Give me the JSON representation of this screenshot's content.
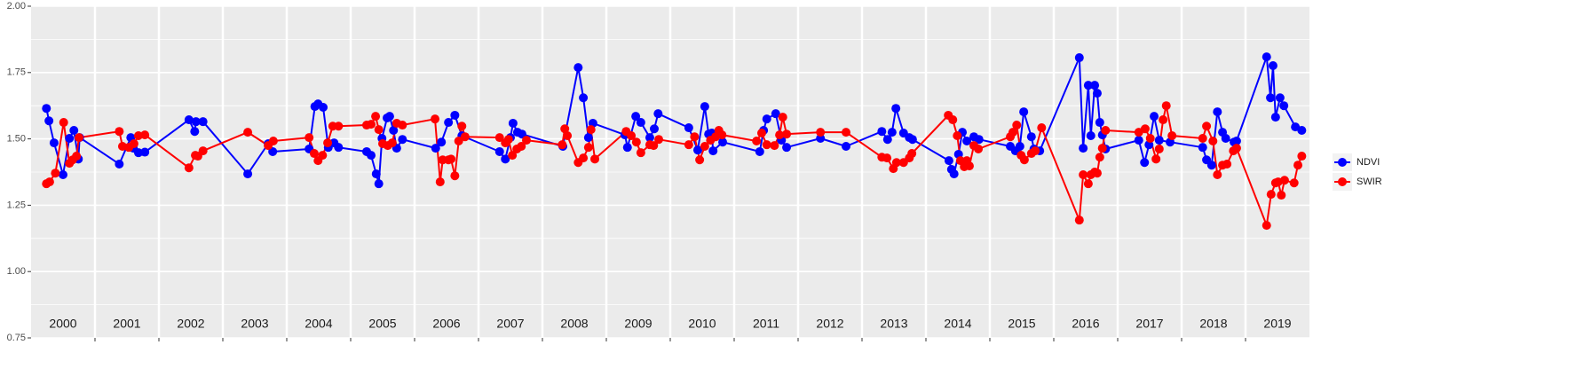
{
  "chart_data": {
    "type": "line",
    "xlim": [
      2000,
      2020
    ],
    "xticks": [
      2000,
      2001,
      2002,
      2003,
      2004,
      2005,
      2006,
      2007,
      2008,
      2009,
      2010,
      2011,
      2012,
      2013,
      2014,
      2015,
      2016,
      2017,
      2018,
      2019
    ],
    "ylim": [
      0.75,
      2.0
    ],
    "yticks": [
      {
        "value": 0.75,
        "label": "0.75"
      },
      {
        "value": 1.0,
        "label": "1.00"
      },
      {
        "value": 1.25,
        "label": "1.25"
      },
      {
        "value": 1.5,
        "label": "1.50"
      },
      {
        "value": 1.75,
        "label": "1.75"
      },
      {
        "value": 2.0,
        "label": "2.00"
      }
    ],
    "grid": true,
    "legend": "right",
    "series": [
      {
        "name": "NDVI",
        "color": "#0000ff",
        "x": [
          2000.24,
          2000.28,
          2000.36,
          2000.5,
          2000.6,
          2000.67,
          2000.74,
          2000.76,
          2001.38,
          2001.56,
          2001.6,
          2001.68,
          2001.78,
          2002.47,
          2002.56,
          2002.58,
          2002.69,
          2003.39,
          2003.71,
          2003.78,
          2004.35,
          2004.44,
          2004.49,
          2004.57,
          2004.65,
          2004.74,
          2004.81,
          2005.25,
          2005.32,
          2005.4,
          2005.44,
          2005.49,
          2005.57,
          2005.61,
          2005.67,
          2005.72,
          2005.81,
          2006.33,
          2006.42,
          2006.53,
          2006.63,
          2006.74,
          2007.33,
          2007.42,
          2007.5,
          2007.54,
          2007.61,
          2007.68,
          2008.32,
          2008.56,
          2008.64,
          2008.72,
          2008.79,
          2009.29,
          2009.33,
          2009.46,
          2009.54,
          2009.68,
          2009.75,
          2009.81,
          2010.29,
          2010.43,
          2010.54,
          2010.6,
          2010.65,
          2010.67,
          2010.82,
          2011.4,
          2011.46,
          2011.51,
          2011.65,
          2011.74,
          2011.82,
          2012.35,
          2012.75,
          2013.31,
          2013.4,
          2013.47,
          2013.53,
          2013.65,
          2013.74,
          2013.79,
          2014.36,
          2014.4,
          2014.44,
          2014.51,
          2014.57,
          2014.64,
          2014.75,
          2014.83,
          2015.32,
          2015.4,
          2015.47,
          2015.53,
          2015.65,
          2015.69,
          2015.78,
          2016.4,
          2016.46,
          2016.54,
          2016.58,
          2016.64,
          2016.68,
          2016.72,
          2016.76,
          2016.81,
          2017.33,
          2017.42,
          2017.49,
          2017.57,
          2017.65,
          2017.82,
          2018.33,
          2018.39,
          2018.47,
          2018.56,
          2018.64,
          2018.69,
          2018.82,
          2018.86,
          2019.33,
          2019.39,
          2019.43,
          2019.47,
          2019.54,
          2019.6,
          2019.78,
          2019.88
        ],
        "values": [
          1.615,
          1.568,
          1.485,
          1.365,
          1.502,
          1.532,
          1.424,
          1.505,
          1.405,
          1.505,
          1.465,
          1.448,
          1.45,
          1.572,
          1.528,
          1.565,
          1.565,
          1.368,
          1.482,
          1.452,
          1.462,
          1.622,
          1.632,
          1.619,
          1.468,
          1.485,
          1.468,
          1.452,
          1.438,
          1.368,
          1.331,
          1.502,
          1.579,
          1.585,
          1.532,
          1.465,
          1.498,
          1.465,
          1.488,
          1.562,
          1.589,
          1.512,
          1.452,
          1.424,
          1.505,
          1.559,
          1.525,
          1.518,
          1.472,
          1.769,
          1.655,
          1.505,
          1.559,
          1.515,
          1.468,
          1.585,
          1.562,
          1.505,
          1.538,
          1.595,
          1.542,
          1.458,
          1.622,
          1.518,
          1.522,
          1.455,
          1.488,
          1.452,
          1.532,
          1.575,
          1.595,
          1.495,
          1.468,
          1.502,
          1.472,
          1.528,
          1.498,
          1.525,
          1.615,
          1.522,
          1.505,
          1.498,
          1.418,
          1.385,
          1.368,
          1.442,
          1.525,
          1.492,
          1.508,
          1.498,
          1.472,
          1.455,
          1.472,
          1.602,
          1.508,
          1.462,
          1.455,
          1.806,
          1.465,
          1.702,
          1.512,
          1.702,
          1.672,
          1.562,
          1.515,
          1.462,
          1.495,
          1.411,
          1.478,
          1.585,
          1.495,
          1.488,
          1.468,
          1.421,
          1.401,
          1.602,
          1.525,
          1.502,
          1.488,
          1.492,
          1.809,
          1.655,
          1.776,
          1.582,
          1.655,
          1.625,
          1.545,
          1.532
        ]
      },
      {
        "name": "SWIR",
        "color": "#ff0000",
        "x": [
          2000.24,
          2000.29,
          2000.38,
          2000.51,
          2000.6,
          2000.65,
          2000.71,
          2000.75,
          2001.38,
          2001.43,
          2001.53,
          2001.61,
          2001.68,
          2001.78,
          2002.47,
          2002.57,
          2002.61,
          2002.69,
          2003.39,
          2003.71,
          2003.79,
          2004.35,
          2004.43,
          2004.49,
          2004.56,
          2004.64,
          2004.72,
          2004.81,
          2005.25,
          2005.32,
          2005.39,
          2005.44,
          2005.5,
          2005.58,
          2005.65,
          2005.72,
          2005.81,
          2006.32,
          2006.4,
          2006.44,
          2006.53,
          2006.57,
          2006.63,
          2006.69,
          2006.74,
          2006.79,
          2007.33,
          2007.42,
          2007.47,
          2007.53,
          2007.6,
          2007.67,
          2007.75,
          2008.31,
          2008.35,
          2008.39,
          2008.56,
          2008.64,
          2008.72,
          2008.76,
          2008.82,
          2009.31,
          2009.39,
          2009.47,
          2009.54,
          2009.68,
          2009.74,
          2009.82,
          2010.29,
          2010.38,
          2010.46,
          2010.54,
          2010.63,
          2010.71,
          2010.76,
          2010.81,
          2011.35,
          2011.43,
          2011.51,
          2011.63,
          2011.71,
          2011.76,
          2011.82,
          2012.35,
          2012.75,
          2013.31,
          2013.39,
          2013.49,
          2013.54,
          2013.65,
          2013.74,
          2013.78,
          2014.35,
          2014.42,
          2014.49,
          2014.54,
          2014.6,
          2014.64,
          2014.68,
          2014.75,
          2014.82,
          2015.32,
          2015.36,
          2015.42,
          2015.49,
          2015.54,
          2015.65,
          2015.71,
          2015.81,
          2016.4,
          2016.46,
          2016.54,
          2016.58,
          2016.64,
          2016.68,
          2016.72,
          2016.76,
          2016.81,
          2017.33,
          2017.43,
          2017.51,
          2017.6,
          2017.65,
          2017.71,
          2017.76,
          2017.85,
          2018.33,
          2018.39,
          2018.49,
          2018.56,
          2018.64,
          2018.71,
          2018.81,
          2018.86,
          2019.33,
          2019.4,
          2019.47,
          2019.51,
          2019.56,
          2019.61,
          2019.76,
          2019.82,
          2019.88
        ],
        "values": [
          1.331,
          1.338,
          1.371,
          1.562,
          1.408,
          1.421,
          1.435,
          1.505,
          1.528,
          1.472,
          1.468,
          1.482,
          1.512,
          1.515,
          1.391,
          1.438,
          1.435,
          1.455,
          1.525,
          1.475,
          1.492,
          1.505,
          1.445,
          1.418,
          1.438,
          1.485,
          1.548,
          1.548,
          1.552,
          1.555,
          1.585,
          1.535,
          1.482,
          1.475,
          1.485,
          1.559,
          1.552,
          1.575,
          1.338,
          1.421,
          1.421,
          1.424,
          1.361,
          1.492,
          1.548,
          1.508,
          1.505,
          1.485,
          1.498,
          1.438,
          1.462,
          1.472,
          1.495,
          1.478,
          1.538,
          1.512,
          1.411,
          1.428,
          1.468,
          1.535,
          1.424,
          1.528,
          1.512,
          1.488,
          1.448,
          1.478,
          1.475,
          1.498,
          1.478,
          1.508,
          1.421,
          1.472,
          1.495,
          1.508,
          1.532,
          1.515,
          1.492,
          1.522,
          1.478,
          1.475,
          1.515,
          1.582,
          1.518,
          1.525,
          1.525,
          1.431,
          1.428,
          1.388,
          1.411,
          1.411,
          1.428,
          1.445,
          1.589,
          1.572,
          1.512,
          1.418,
          1.395,
          1.418,
          1.398,
          1.475,
          1.462,
          1.508,
          1.525,
          1.552,
          1.438,
          1.421,
          1.445,
          1.455,
          1.542,
          1.194,
          1.365,
          1.331,
          1.365,
          1.375,
          1.371,
          1.431,
          1.465,
          1.532,
          1.525,
          1.538,
          1.502,
          1.424,
          1.462,
          1.572,
          1.625,
          1.512,
          1.502,
          1.548,
          1.492,
          1.365,
          1.401,
          1.405,
          1.455,
          1.465,
          1.174,
          1.291,
          1.334,
          1.338,
          1.288,
          1.344,
          1.334,
          1.401,
          1.435
        ]
      }
    ]
  }
}
